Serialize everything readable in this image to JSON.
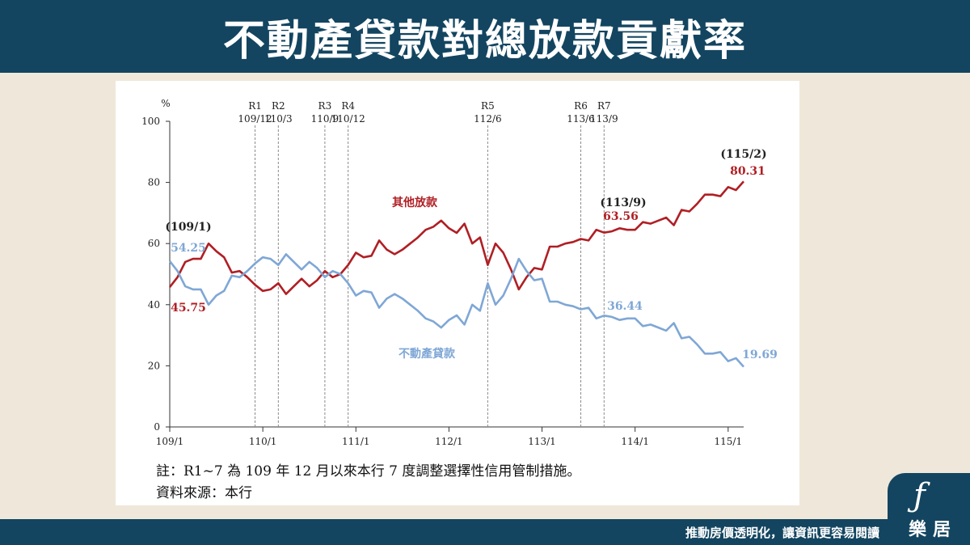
{
  "header": {
    "title": "不動產貸款對總放款貢獻率"
  },
  "chart_data": {
    "type": "line",
    "ylabel": "%",
    "ylim": [
      0,
      100
    ],
    "y_ticks": [
      0,
      20,
      40,
      60,
      80,
      100
    ],
    "x_tick_labels": [
      "109/1",
      "110/1",
      "111/1",
      "112/1",
      "113/1",
      "114/1",
      "115/1"
    ],
    "rules": [
      {
        "label": "R1",
        "date": "109/12",
        "month_index": 11
      },
      {
        "label": "R2",
        "date": "110/3",
        "month_index": 14
      },
      {
        "label": "R3",
        "date": "110/9",
        "month_index": 20
      },
      {
        "label": "R4",
        "date": "110/12",
        "month_index": 23
      },
      {
        "label": "R5",
        "date": "112/6",
        "month_index": 41
      },
      {
        "label": "R6",
        "date": "113/6",
        "month_index": 53
      },
      {
        "label": "R7",
        "date": "113/9",
        "month_index": 56
      }
    ],
    "series": [
      {
        "name": "其他放款",
        "color": "#b01f24",
        "values": [
          45.75,
          49,
          54,
          55,
          55,
          60,
          57.5,
          55.5,
          50.5,
          51,
          49,
          46.5,
          44.5,
          45,
          47,
          43.5,
          46,
          48.5,
          46,
          48,
          51,
          49,
          50,
          53,
          57,
          55.5,
          56,
          61,
          58,
          56.5,
          58,
          60,
          62,
          64.5,
          65.5,
          67.5,
          65,
          63.5,
          66.5,
          60,
          62,
          53,
          60,
          57,
          51.5,
          45,
          49,
          52,
          51.5,
          59,
          59,
          60,
          60.5,
          61.5,
          61,
          64.5,
          63.56,
          64,
          65,
          64.5,
          64.5,
          67,
          66.5,
          67.5,
          68.5,
          66,
          71,
          70.5,
          73,
          76,
          76,
          75.5,
          78.5,
          77.5,
          80.31
        ]
      },
      {
        "name": "不動產貸款",
        "color": "#7fa7d6",
        "values": [
          54.25,
          51,
          46,
          45,
          45,
          40,
          43,
          44.5,
          49.5,
          49,
          51,
          53.5,
          55.5,
          55,
          53,
          56.5,
          54,
          51.5,
          54,
          52,
          49,
          51,
          50,
          47,
          43,
          44.5,
          44,
          39,
          42,
          43.5,
          42,
          40,
          38,
          35.5,
          34.5,
          32.5,
          35,
          36.5,
          33.5,
          40,
          38,
          47,
          40,
          43,
          48.5,
          55,
          51,
          48,
          48.5,
          41,
          41,
          40,
          39.5,
          38.5,
          39,
          35.5,
          36.44,
          36,
          35,
          35.5,
          35.5,
          33,
          33.5,
          32.5,
          31.5,
          34,
          29,
          29.5,
          27,
          24,
          24,
          24.5,
          21.5,
          22.5,
          19.69
        ]
      }
    ],
    "annotations": {
      "start_date": "(109/1)",
      "start_blue": "54.25",
      "start_red": "45.75",
      "mid_date": "(113/9)",
      "mid_red": "63.56",
      "mid_blue": "36.44",
      "end_date": "(115/2)",
      "end_red": "80.31",
      "end_blue": "19.69"
    }
  },
  "notes": {
    "line1": "註：R1~7 為 109 年 12 月以來本行 7 度調整選擇性信用管制措施。",
    "line2": "資料來源：本行"
  },
  "footer": {
    "tagline": "推動房價透明化，讓資訊更容易閱讀"
  },
  "logo": {
    "text": "樂居"
  }
}
